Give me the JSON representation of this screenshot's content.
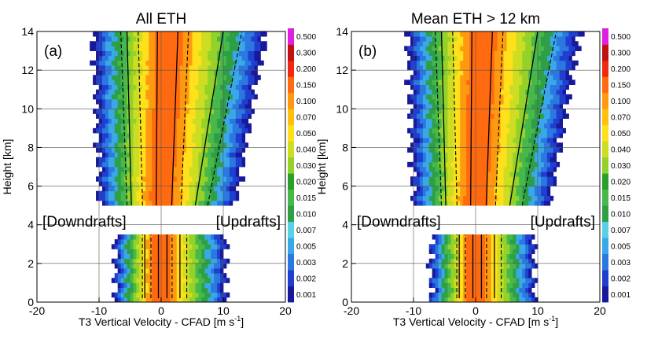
{
  "figure": {
    "panels": [
      {
        "title": "All ETH",
        "letter": "(a)",
        "left_label": "[Downdrafts]",
        "right_label": "[Updrafts]",
        "xlabel": "T3 Vertical Velocity - CFAD [m s",
        "xlabel_sup": "-1",
        "xlabel_end": "]",
        "ylabel": "Height [km]",
        "x_ticks": [
          "-20",
          "-10",
          "0",
          "10",
          "20"
        ],
        "y_ticks": [
          "0",
          "2",
          "4",
          "6",
          "8",
          "10",
          "12",
          "14"
        ],
        "colorbar_labels": [
          "0.001",
          "0.002",
          "0.003",
          "0.005",
          "0.007",
          "0.010",
          "0.015",
          "0.020",
          "0.030",
          "0.040",
          "0.050",
          "0.070",
          "0.100",
          "0.150",
          "0.200",
          "0.300",
          "0.500"
        ]
      },
      {
        "title": "Mean ETH > 12 km",
        "letter": "(b)",
        "left_label": "[Downdrafts]",
        "right_label": "[Updrafts]",
        "xlabel": "T3 Vertical Velocity - CFAD [m s",
        "xlabel_sup": "-1",
        "xlabel_end": "]",
        "ylabel": "Height [km]",
        "x_ticks": [
          "-20",
          "-10",
          "0",
          "10",
          "20"
        ],
        "y_ticks": [
          "0",
          "2",
          "4",
          "6",
          "8",
          "10",
          "12",
          "14"
        ],
        "colorbar_labels": [
          "0.001",
          "0.002",
          "0.003",
          "0.005",
          "0.007",
          "0.010",
          "0.015",
          "0.020",
          "0.030",
          "0.040",
          "0.050",
          "0.070",
          "0.100",
          "0.150",
          "0.200",
          "0.300",
          "0.500"
        ]
      }
    ]
  },
  "colors": {
    "levels": [
      "#18189a",
      "#1f3fd0",
      "#2a78e0",
      "#3aa8e8",
      "#5ad0e8",
      "#2f9f46",
      "#47b84a",
      "#2aa02a",
      "#94d22a",
      "#ccdd22",
      "#ffe01a",
      "#ffc010",
      "#ff9a10",
      "#ff6a10",
      "#f02a10",
      "#c01010",
      "#e020e0"
    ],
    "band_map": [
      0,
      1,
      2,
      3,
      5,
      6,
      8,
      9,
      10,
      12,
      13
    ]
  },
  "chart_data": [
    {
      "type": "heatmap",
      "title": "All ETH",
      "xlabel": "T3 Vertical Velocity - CFAD [m s-1]",
      "ylabel": "Height [km]",
      "xlim": [
        -20,
        20
      ],
      "ylim": [
        0,
        14
      ],
      "colorbar_levels": [
        0.001,
        0.002,
        0.003,
        0.005,
        0.007,
        0.01,
        0.015,
        0.02,
        0.03,
        0.04,
        0.05,
        0.07,
        0.1,
        0.15,
        0.2,
        0.3,
        0.5
      ],
      "layers": [
        {
          "height_range": [
            0,
            3.5
          ],
          "edge_left": -7.5,
          "edge_right": 10.5,
          "center": -0.2,
          "core_halfwidth": 0.7
        },
        {
          "height_range": [
            5,
            14
          ],
          "edge_left": [
            -10,
            -11
          ],
          "edge_right": [
            12,
            17
          ],
          "center": [
            0.0,
            1.2
          ],
          "core_halfwidth": [
            0.8,
            0.8
          ]
        }
      ],
      "percentile_lines": {
        "solid": [
          [
            -4.8,
            -5.5
          ],
          [
            -0.8,
            -0.6
          ],
          [
            1.7,
            2.7
          ],
          [
            5.5,
            10
          ]
        ],
        "dashed": [
          [
            -5.5,
            -6.5
          ],
          [
            -3,
            -3.7
          ],
          [
            3.2,
            4.4
          ],
          [
            7.5,
            13
          ]
        ]
      }
    },
    {
      "type": "heatmap",
      "title": "Mean ETH > 12 km",
      "xlabel": "T3 Vertical Velocity - CFAD [m s-1]",
      "ylabel": "Height [km]",
      "xlim": [
        -20,
        20
      ],
      "ylim": [
        0,
        14
      ],
      "colorbar_levels": [
        0.001,
        0.002,
        0.003,
        0.005,
        0.007,
        0.01,
        0.015,
        0.02,
        0.03,
        0.04,
        0.05,
        0.07,
        0.1,
        0.15,
        0.2,
        0.3,
        0.5
      ],
      "layers": [
        {
          "height_range": [
            0,
            3.5
          ],
          "edge_left": -7.2,
          "edge_right": 9.5,
          "center": 0.0,
          "core_halfwidth": 0.7
        },
        {
          "height_range": [
            5,
            14
          ],
          "edge_left": [
            -10,
            -11
          ],
          "edge_right": [
            12,
            17
          ],
          "center": [
            0.0,
            1.0
          ],
          "core_halfwidth": [
            0.8,
            0.8
          ]
        }
      ],
      "percentile_lines": {
        "solid": [
          [
            -4.8,
            -5.5
          ],
          [
            -0.8,
            -0.6
          ],
          [
            1.7,
            2.7
          ],
          [
            5.5,
            10
          ]
        ],
        "dashed": [
          [
            -5.5,
            -6.5
          ],
          [
            -3,
            -3.7
          ],
          [
            3.2,
            4.4
          ],
          [
            7.5,
            13
          ]
        ]
      }
    }
  ]
}
